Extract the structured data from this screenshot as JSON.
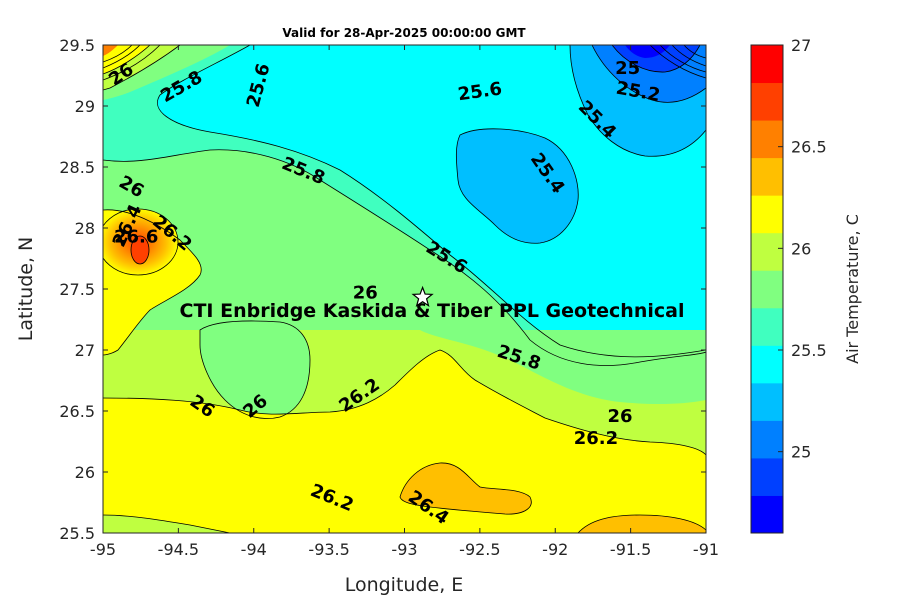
{
  "chart_data": {
    "type": "contour",
    "title": "Valid for 28-Apr-2025 00:00:00 GMT",
    "xlabel": "Longitude, E",
    "ylabel": "Latitude, N",
    "xlim": [
      -95,
      -91
    ],
    "ylim": [
      25.5,
      29.5
    ],
    "x_ticks": [
      "-95",
      "-94.5",
      "-94",
      "-93.5",
      "-93",
      "-92.5",
      "-92",
      "-91.5",
      "-91"
    ],
    "y_ticks": [
      "25.5",
      "26",
      "26.5",
      "27",
      "27.5",
      "28",
      "28.5",
      "29",
      "29.5"
    ],
    "colorbar": {
      "label": "Air Temperature, C",
      "range": [
        24.6,
        27
      ],
      "ticks": [
        "25",
        "25.5",
        "26",
        "26.5",
        "27"
      ],
      "colors": [
        "#0000ff",
        "#0040ff",
        "#0080ff",
        "#00bfff",
        "#00ffff",
        "#40ffbf",
        "#80ff80",
        "#bfff40",
        "#ffff00",
        "#ffbf00",
        "#ff8000",
        "#ff4000",
        "#ff0000"
      ]
    },
    "contour_labels": [
      {
        "text": "26",
        "lon": -94.88,
        "lat": 29.26,
        "angle": -35
      },
      {
        "text": "25.8",
        "lon": -94.48,
        "lat": 29.16,
        "angle": -30
      },
      {
        "text": "25.6",
        "lon": -93.97,
        "lat": 29.17,
        "angle": -75
      },
      {
        "text": "25.6",
        "lon": -92.5,
        "lat": 29.12,
        "angle": -8
      },
      {
        "text": "25",
        "lon": -91.52,
        "lat": 29.31,
        "angle": 0
      },
      {
        "text": "25.2",
        "lon": -91.45,
        "lat": 29.12,
        "angle": 10
      },
      {
        "text": "25.4",
        "lon": -91.72,
        "lat": 28.89,
        "angle": 45
      },
      {
        "text": "25.4",
        "lon": -92.05,
        "lat": 28.45,
        "angle": 55
      },
      {
        "text": "25.8",
        "lon": -93.67,
        "lat": 28.47,
        "angle": 22
      },
      {
        "text": "26",
        "lon": -94.81,
        "lat": 28.34,
        "angle": 30
      },
      {
        "text": "26.4",
        "lon": -94.84,
        "lat": 28.02,
        "angle": -65
      },
      {
        "text": "26.6",
        "lon": -94.78,
        "lat": 27.93,
        "angle": 0
      },
      {
        "text": "26.2",
        "lon": -94.54,
        "lat": 27.96,
        "angle": 40
      },
      {
        "text": "25.6",
        "lon": -92.72,
        "lat": 27.76,
        "angle": 32
      },
      {
        "text": "26",
        "lon": -93.26,
        "lat": 27.47,
        "angle": 0
      },
      {
        "text": "25.8",
        "lon": -92.24,
        "lat": 26.94,
        "angle": 18
      },
      {
        "text": "26",
        "lon": -94.34,
        "lat": 26.54,
        "angle": 35
      },
      {
        "text": "26",
        "lon": -93.99,
        "lat": 26.54,
        "angle": -40
      },
      {
        "text": "26.2",
        "lon": -93.3,
        "lat": 26.63,
        "angle": -35
      },
      {
        "text": "26",
        "lon": -91.57,
        "lat": 26.46,
        "angle": 0
      },
      {
        "text": "26.2",
        "lon": -91.73,
        "lat": 26.28,
        "angle": 0
      },
      {
        "text": "26.2",
        "lon": -93.48,
        "lat": 25.79,
        "angle": 22
      },
      {
        "text": "26.4",
        "lon": -92.84,
        "lat": 25.71,
        "angle": 35
      }
    ],
    "marker": {
      "lon": -92.88,
      "lat": 27.43,
      "label": "CTI Enbridge  Kaskida & Tiber PPL Geotechnical"
    }
  }
}
